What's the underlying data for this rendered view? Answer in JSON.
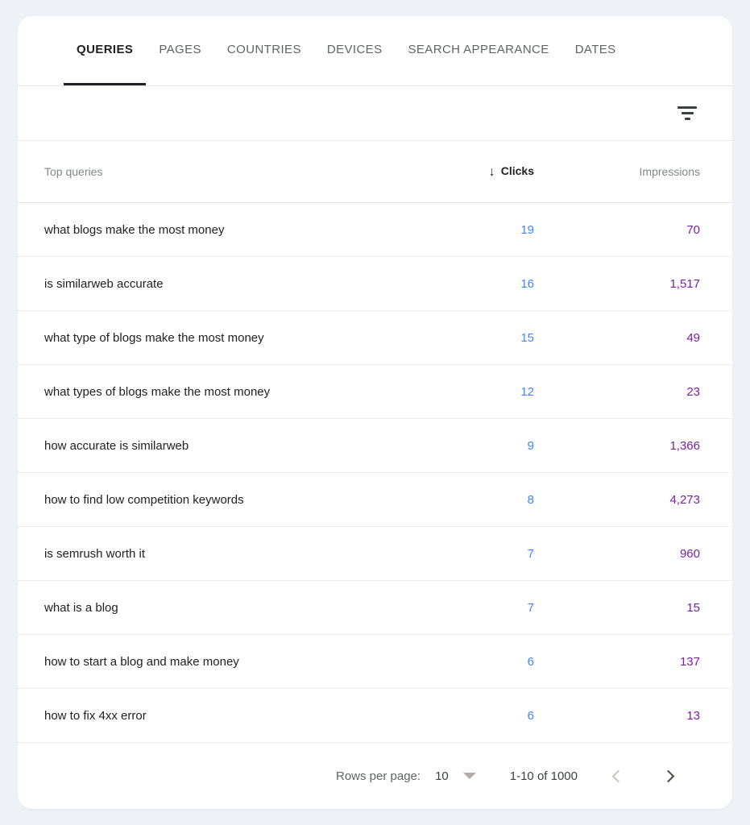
{
  "tabs": [
    {
      "label": "QUERIES",
      "active": true
    },
    {
      "label": "PAGES",
      "active": false
    },
    {
      "label": "COUNTRIES",
      "active": false
    },
    {
      "label": "DEVICES",
      "active": false
    },
    {
      "label": "SEARCH APPEARANCE",
      "active": false
    },
    {
      "label": "DATES",
      "active": false
    }
  ],
  "icons": {
    "filter": "filter-list-icon",
    "sort": "arrow-down-icon",
    "rows_per_page_dropdown": "triangle-down-icon",
    "prev_page": "chevron-left-icon",
    "next_page": "chevron-right-icon"
  },
  "colors": {
    "clicks": "#4285f4",
    "impressions": "#7b1fa2",
    "tab_active": "#202124",
    "page_background": "#eef1f5",
    "card_background": "#ffffff"
  },
  "table": {
    "sort": {
      "column": "Clicks",
      "direction": "descending",
      "arrow": "↓"
    },
    "columns": {
      "query": "Top queries",
      "clicks": "Clicks",
      "impressions": "Impressions"
    },
    "rows": [
      {
        "query": "what blogs make the most money",
        "clicks": "19",
        "impressions": "70"
      },
      {
        "query": "is similarweb accurate",
        "clicks": "16",
        "impressions": "1,517"
      },
      {
        "query": "what type of blogs make the most money",
        "clicks": "15",
        "impressions": "49"
      },
      {
        "query": "what types of blogs make the most money",
        "clicks": "12",
        "impressions": "23"
      },
      {
        "query": "how accurate is similarweb",
        "clicks": "9",
        "impressions": "1,366"
      },
      {
        "query": "how to find low competition keywords",
        "clicks": "8",
        "impressions": "4,273"
      },
      {
        "query": "is semrush worth it",
        "clicks": "7",
        "impressions": "960"
      },
      {
        "query": "what is a blog",
        "clicks": "7",
        "impressions": "15"
      },
      {
        "query": "how to start a blog and make money",
        "clicks": "6",
        "impressions": "137"
      },
      {
        "query": "how to fix 4xx error",
        "clicks": "6",
        "impressions": "13"
      }
    ]
  },
  "pagination": {
    "rows_per_page_label": "Rows per page:",
    "rows_per_page_value": "10",
    "range": "1-10 of 1000"
  }
}
